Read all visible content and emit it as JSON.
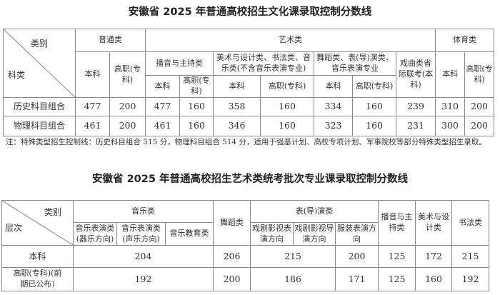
{
  "table1": {
    "title": "安徽省 2025 年普通高校招生文化课录取控制分数线",
    "corner_top": "类别",
    "corner_bottom": "科类",
    "groups": {
      "general": "普通类",
      "art": "艺术类",
      "sports": "体育类"
    },
    "art_sub": {
      "broadcast": "播音与主持类",
      "fine_art": "美术与设计类、书法类、音乐类(不含音乐表演专业)",
      "dance": "舞蹈类、表(导)演类、音乐表演专业",
      "opera": "戏曲类省际联考(本科)"
    },
    "levels": {
      "ben": "本科",
      "gao": "高职(专科)"
    },
    "rows": [
      {
        "label": "历史科目组合",
        "values": [
          "477",
          "200",
          "477",
          "160",
          "358",
          "160",
          "334",
          "160",
          "239",
          "310",
          "200"
        ]
      },
      {
        "label": "物理科目组合",
        "values": [
          "461",
          "200",
          "461",
          "160",
          "346",
          "160",
          "323",
          "160",
          "231",
          "300",
          "200"
        ]
      }
    ],
    "note": "注：特殊类型招生控制线：历史科目组合 515 分，物理科目组合 514 分，适用于强基计划、高校专项计划、军事院校等部分特殊类型招生录取。"
  },
  "table2": {
    "title": "安徽省 2025 年普通高校招生艺术类统考批次专业课录取控制分数线",
    "corner_top": "类别",
    "corner_bottom": "层次",
    "music": "音乐类",
    "music_sub": [
      "音乐表演类(器乐方向)",
      "音乐表演类(声乐方向)",
      "音乐教育类"
    ],
    "dance": "舞蹈类",
    "drama": "表(导)演类",
    "drama_sub": [
      "戏剧影视表演方向",
      "戏剧影视导演方向",
      "服装表演方向"
    ],
    "broadcast": "播音与主持类",
    "fine_art": "美术与设计类",
    "calligraphy": "书法类",
    "rows": [
      {
        "label": "本科",
        "music": "204",
        "dance": "206",
        "drama": "215",
        "fashion": "200",
        "broadcast": "125",
        "fine_art": "172",
        "calligraphy": "215"
      },
      {
        "label": "高职(专科)(前期已公布)",
        "music": "192",
        "dance": "200",
        "drama": "186",
        "fashion": "171",
        "broadcast": "125",
        "fine_art": "160",
        "calligraphy": "192"
      }
    ]
  }
}
